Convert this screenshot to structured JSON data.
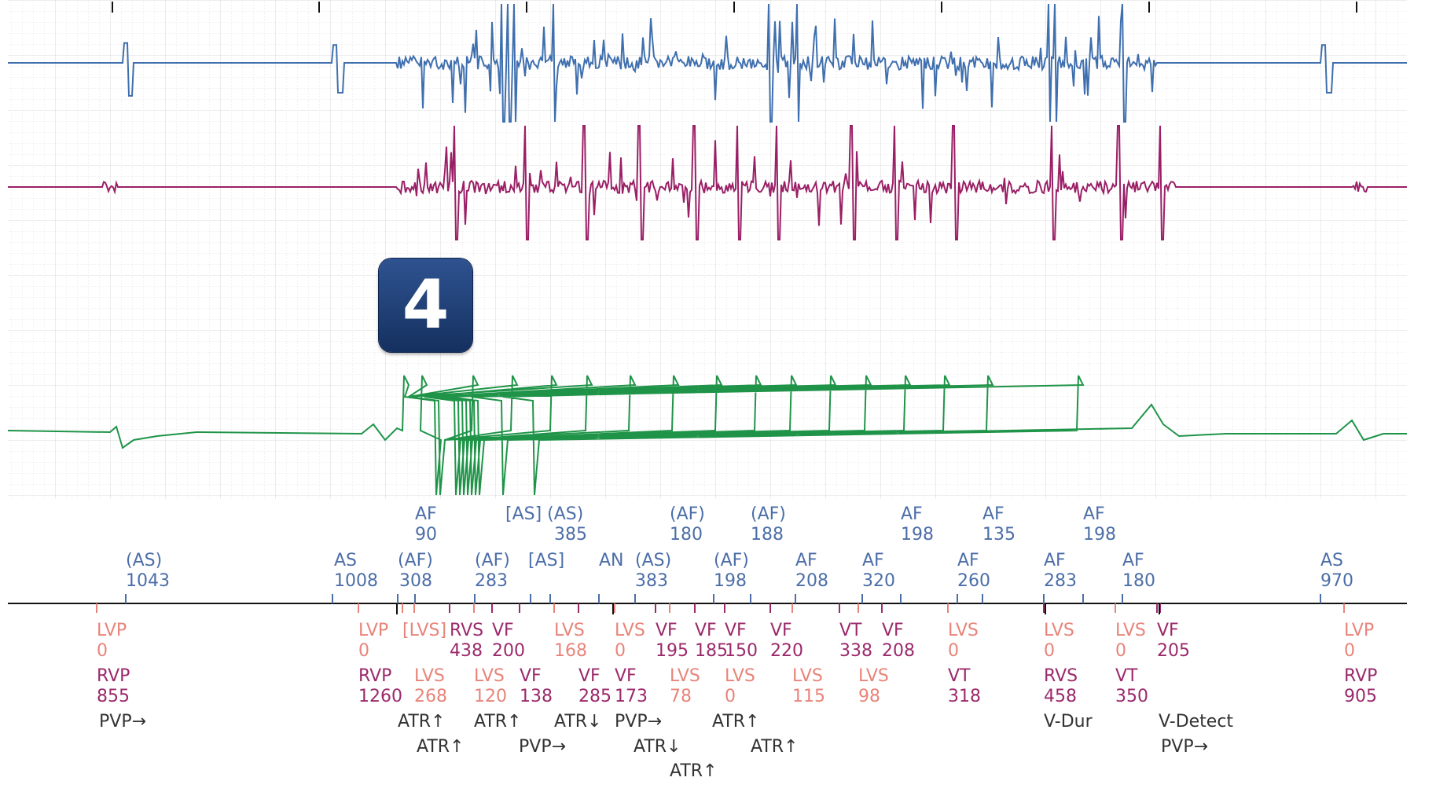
{
  "badge": {
    "text": "4",
    "color": "#1d3c72"
  },
  "colors": {
    "atrial_trace": "#3f6fae",
    "rv_trace": "#9a1f66",
    "shock_trace": "#1f9448",
    "atrial_markers": "#4c6ea8",
    "lv_markers": "#e8847a",
    "rv_markers": "#9b2a6b",
    "event_markers": "#333333"
  },
  "atrial_top": [
    {
      "label": "AF",
      "value": "90"
    },
    {
      "label": "[AS] (AS)",
      "value": "385"
    },
    {
      "label": "(AF)",
      "value": "180"
    },
    {
      "label": "(AF)",
      "value": "188"
    },
    {
      "label": "AF",
      "value": "198"
    },
    {
      "label": "AF",
      "value": "135"
    },
    {
      "label": "AF",
      "value": "198"
    }
  ],
  "atrial_bottom": [
    {
      "label": "(AS)",
      "value": "1043"
    },
    {
      "label": "AS",
      "value": "1008"
    },
    {
      "label": "(AF)",
      "value": "308"
    },
    {
      "label": "(AF)",
      "value": "283"
    },
    {
      "label": "[AS]",
      "value": ""
    },
    {
      "label": "AN",
      "value": ""
    },
    {
      "label": "(AS)",
      "value": "383"
    },
    {
      "label": "(AF)",
      "value": "198"
    },
    {
      "label": "AF",
      "value": "208"
    },
    {
      "label": "AF",
      "value": "320"
    },
    {
      "label": "AF",
      "value": "260"
    },
    {
      "label": "AF",
      "value": "283"
    },
    {
      "label": "AF",
      "value": "180"
    },
    {
      "label": "AS",
      "value": "970"
    }
  ],
  "v_row1": [
    {
      "label": "LVP",
      "value": "0",
      "kind": "lvs"
    },
    {
      "label": "LVP",
      "value": "0",
      "kind": "lvs"
    },
    {
      "label": "[LVS]",
      "value": "",
      "kind": "lvs"
    },
    {
      "label": "RVS",
      "value": "438",
      "kind": "rv"
    },
    {
      "label": "VF",
      "value": "200",
      "kind": "rv"
    },
    {
      "label": "LVS",
      "value": "168",
      "kind": "lvs"
    },
    {
      "label": "LVS",
      "value": "0",
      "kind": "lvs"
    },
    {
      "label": "VF",
      "value": "195",
      "kind": "rv"
    },
    {
      "label": "VF",
      "value": "185",
      "kind": "rv"
    },
    {
      "label": "VF",
      "value": "150",
      "kind": "rv"
    },
    {
      "label": "VF",
      "value": "220",
      "kind": "rv"
    },
    {
      "label": "VT",
      "value": "338",
      "kind": "rv"
    },
    {
      "label": "VF",
      "value": "208",
      "kind": "rv"
    },
    {
      "label": "LVS",
      "value": "0",
      "kind": "lvs"
    },
    {
      "label": "LVS",
      "value": "0",
      "kind": "lvs"
    },
    {
      "label": "LVS",
      "value": "0",
      "kind": "lvs"
    },
    {
      "label": "VF",
      "value": "205",
      "kind": "rv"
    },
    {
      "label": "LVP",
      "value": "0",
      "kind": "lvs"
    }
  ],
  "v_row2": [
    {
      "label": "RVP",
      "value": "855",
      "kind": "rv"
    },
    {
      "label": "RVP",
      "value": "1260",
      "kind": "rv"
    },
    {
      "label": "LVS",
      "value": "268",
      "kind": "lvs"
    },
    {
      "label": "LVS",
      "value": "120",
      "kind": "lvs"
    },
    {
      "label": "VF",
      "value": "138",
      "kind": "rv"
    },
    {
      "label": "VF",
      "value": "285",
      "kind": "rv"
    },
    {
      "label": "VF",
      "value": "173",
      "kind": "rv"
    },
    {
      "label": "LVS",
      "value": "78",
      "kind": "lvs"
    },
    {
      "label": "LVS",
      "value": "0",
      "kind": "lvs"
    },
    {
      "label": "LVS",
      "value": "115",
      "kind": "lvs"
    },
    {
      "label": "LVS",
      "value": "98",
      "kind": "lvs"
    },
    {
      "label": "VT",
      "value": "318",
      "kind": "rv"
    },
    {
      "label": "RVS",
      "value": "458",
      "kind": "rv"
    },
    {
      "label": "VT",
      "value": "350",
      "kind": "rv"
    },
    {
      "label": "RVP",
      "value": "905",
      "kind": "rv"
    }
  ],
  "events": [
    {
      "label": "PVP→"
    },
    {
      "label": "ATR↑"
    },
    {
      "label": "ATR↑"
    },
    {
      "label": "ATR↓"
    },
    {
      "label": "PVP→"
    },
    {
      "label": "ATR↑"
    },
    {
      "label": "ATR↑"
    },
    {
      "label": "PVP→"
    },
    {
      "label": "ATR↓"
    },
    {
      "label": "ATR↑"
    },
    {
      "label": "ATR↑"
    },
    {
      "label": "V-Dur"
    },
    {
      "label": "V-Detect"
    },
    {
      "label": "PVP→"
    }
  ]
}
